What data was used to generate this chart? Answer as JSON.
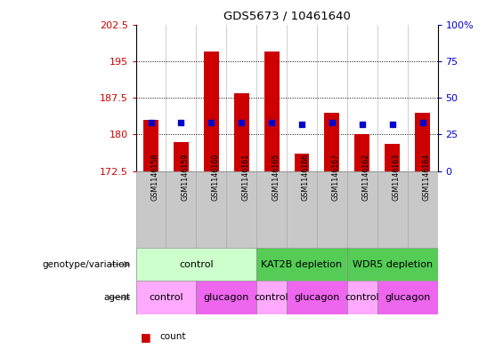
{
  "title": "GDS5673 / 10461640",
  "samples": [
    "GSM1146158",
    "GSM1146159",
    "GSM1146160",
    "GSM1146161",
    "GSM1146165",
    "GSM1146166",
    "GSM1146167",
    "GSM1146162",
    "GSM1146163",
    "GSM1146164"
  ],
  "count_values": [
    183,
    178.5,
    197,
    188.5,
    197,
    176,
    184.5,
    180,
    178,
    184.5
  ],
  "percentile_values": [
    33,
    33,
    33,
    33,
    33,
    32,
    33,
    32,
    32,
    33
  ],
  "ylim_left": [
    172.5,
    202.5
  ],
  "ylim_right": [
    0,
    100
  ],
  "yticks_left": [
    172.5,
    180,
    187.5,
    195,
    202.5
  ],
  "yticks_right": [
    0,
    25,
    50,
    75,
    100
  ],
  "ytick_labels_right": [
    "0",
    "25",
    "50",
    "75",
    "100%"
  ],
  "grid_lines": [
    195,
    187.5,
    180
  ],
  "bar_color": "#cc0000",
  "dot_color": "#0000cc",
  "bar_bottom": 172.5,
  "genotype_groups": [
    {
      "label": "control",
      "start": 0,
      "end": 4,
      "color": "#ccffcc"
    },
    {
      "label": "KAT2B depletion",
      "start": 4,
      "end": 7,
      "color": "#55cc55"
    },
    {
      "label": "WDR5 depletion",
      "start": 7,
      "end": 10,
      "color": "#55cc55"
    }
  ],
  "agent_groups": [
    {
      "label": "control",
      "start": 0,
      "end": 2,
      "color": "#ffaaff"
    },
    {
      "label": "glucagon",
      "start": 2,
      "end": 4,
      "color": "#ee66ee"
    },
    {
      "label": "control",
      "start": 4,
      "end": 5,
      "color": "#ffaaff"
    },
    {
      "label": "glucagon",
      "start": 5,
      "end": 7,
      "color": "#ee66ee"
    },
    {
      "label": "control",
      "start": 7,
      "end": 8,
      "color": "#ffaaff"
    },
    {
      "label": "glucagon",
      "start": 8,
      "end": 10,
      "color": "#ee66ee"
    }
  ],
  "left_tick_color": "#cc0000",
  "right_tick_color": "#0000cc",
  "bg_color": "#ffffff",
  "n_samples": 10,
  "sample_bg_color": "#c8c8c8",
  "sample_sep_color": "#aaaaaa"
}
